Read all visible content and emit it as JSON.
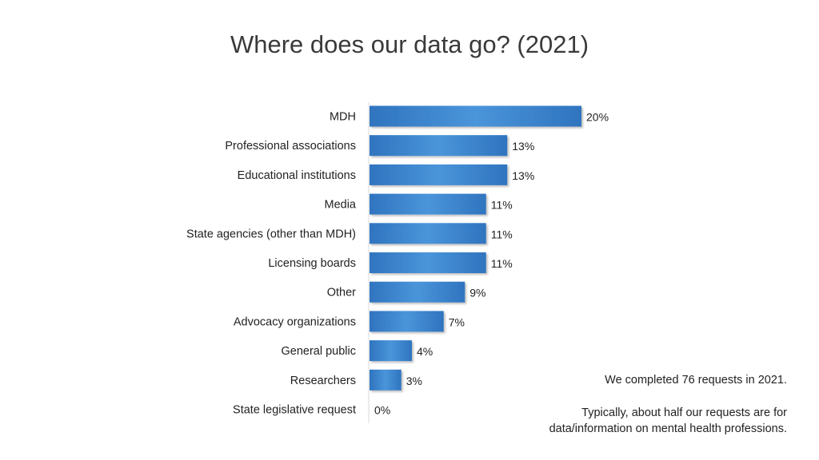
{
  "page": {
    "title": "Where does our data go? (2021)",
    "note_requests": "We completed 76 requests in 2021.",
    "note_typical_line1": "Typically, about half our requests are for",
    "note_typical_line2": "data/information on mental health professions."
  },
  "chart_data": {
    "type": "bar",
    "orientation": "horizontal",
    "title": "Where does our data go? (2021)",
    "categories": [
      "MDH",
      "Professional associations",
      "Educational institutions",
      "Media",
      "State agencies (other than MDH)",
      "Licensing boards",
      "Other",
      "Advocacy organizations",
      "General public",
      "Researchers",
      "State legislative request"
    ],
    "values": [
      20,
      13,
      13,
      11,
      11,
      11,
      9,
      7,
      4,
      3,
      0
    ],
    "value_labels": [
      "20%",
      "13%",
      "13%",
      "11%",
      "11%",
      "11%",
      "9%",
      "7%",
      "4%",
      "3%",
      "0%"
    ],
    "unit": "%",
    "bar_color": "#3a87d0",
    "bar_color_dark": "#2a6db5",
    "grid": false,
    "legend": "none"
  }
}
